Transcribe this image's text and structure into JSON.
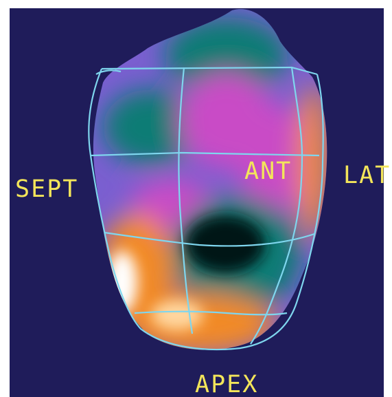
{
  "labels": {
    "septal": "SEPT",
    "anterior": "ANT",
    "lateral": "LAT",
    "apex": "APEX"
  },
  "colors": {
    "background": "#1f1c5a",
    "label_text": "#f3e55a",
    "mesh_lines": "#7fd6ee",
    "teal": "#0f7c74",
    "dark_center": "#021613",
    "purple": "#7a5fd0",
    "magenta": "#c94cc6",
    "orange": "#f28a28",
    "white_highlight": "#ffffff"
  }
}
